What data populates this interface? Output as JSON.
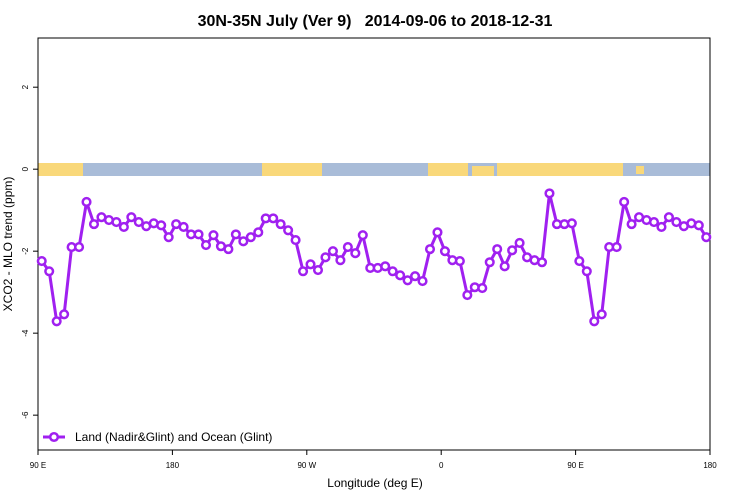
{
  "chart_data": {
    "type": "line",
    "title": "30N-35N July (Ver 9)   2014-09-06 to 2018-12-31",
    "xlabel": "Longitude (deg E)",
    "ylabel": "XCO2 - MLO trend (ppm)",
    "xlim": [
      90,
      540
    ],
    "ylim": [
      -6.85,
      3.2
    ],
    "xticks": [
      {
        "value": 90,
        "label": "90 E"
      },
      180,
      {
        "value": 270,
        "label": "90 W"
      },
      {
        "value": 360,
        "label": "0"
      },
      {
        "value": 450,
        "label": "90 E"
      },
      {
        "value": 540,
        "label": "180"
      }
    ],
    "yticks": [
      2,
      0,
      -2,
      -4,
      -6
    ],
    "legend": "bottom-left",
    "x": [
      92.5,
      97.5,
      102.5,
      107.5,
      112.5,
      117.5,
      122.5,
      127.5,
      132.5,
      137.5,
      142.5,
      147.5,
      152.5,
      157.5,
      162.5,
      167.5,
      172.5,
      177.5,
      182.5,
      187.5,
      192.5,
      197.5,
      202.5,
      207.5,
      212.5,
      217.5,
      222.5,
      227.5,
      232.5,
      237.5,
      242.5,
      247.5,
      252.5,
      257.5,
      262.5,
      267.5,
      272.5,
      277.5,
      282.5,
      287.5,
      292.5,
      297.5,
      302.5,
      307.5,
      312.5,
      317.5,
      322.5,
      327.5,
      332.5,
      337.5,
      342.5,
      347.5,
      352.5,
      357.5,
      362.5,
      367.5,
      372.5,
      377.5,
      382.5,
      387.5,
      392.5,
      397.5,
      402.5,
      407.5,
      412.5,
      417.5,
      422.5,
      427.5,
      432.5,
      437.5,
      442.5,
      447.5,
      452.5,
      457.5,
      462.5,
      467.5,
      472.5,
      477.5,
      482.5,
      487.5,
      492.5,
      497.5,
      502.5,
      507.5,
      512.5,
      517.5,
      522.5,
      527.5,
      532.5,
      537.5
    ],
    "series": [
      {
        "name": "Land (Nadir&Glint) and Ocean (Glint)",
        "color": "#a020f0",
        "values": [
          -2.24,
          -2.49,
          -3.71,
          -3.54,
          -1.9,
          -1.9,
          -0.8,
          -1.34,
          -1.17,
          -1.24,
          -1.29,
          -1.41,
          -1.17,
          -1.29,
          -1.39,
          -1.32,
          -1.37,
          -1.66,
          -1.34,
          -1.41,
          -1.59,
          -1.59,
          -1.85,
          -1.61,
          -1.88,
          -1.95,
          -1.59,
          -1.76,
          -1.66,
          -1.54,
          -1.2,
          -1.2,
          -1.34,
          -1.49,
          -1.73,
          -2.49,
          -2.32,
          -2.46,
          -2.15,
          -2.0,
          -2.22,
          -1.9,
          -2.05,
          -1.61,
          -2.41,
          -2.41,
          -2.37,
          -2.49,
          -2.59,
          -2.71,
          -2.61,
          -2.73,
          -1.95,
          -1.54,
          -2.0,
          -2.22,
          -2.24,
          -3.07,
          -2.88,
          -2.9,
          -2.27,
          -1.95,
          -2.37,
          -1.98,
          -1.8,
          -2.15,
          -2.22,
          -2.27,
          -0.59,
          -1.34,
          -1.34,
          -1.32,
          -2.24,
          -2.49,
          -3.71,
          -3.54,
          -1.9,
          -1.9,
          -0.8,
          -1.34,
          -1.17,
          -1.24,
          -1.29,
          -1.41,
          -1.17,
          -1.29,
          -1.39,
          -1.32,
          -1.37,
          -1.66
        ]
      }
    ]
  }
}
